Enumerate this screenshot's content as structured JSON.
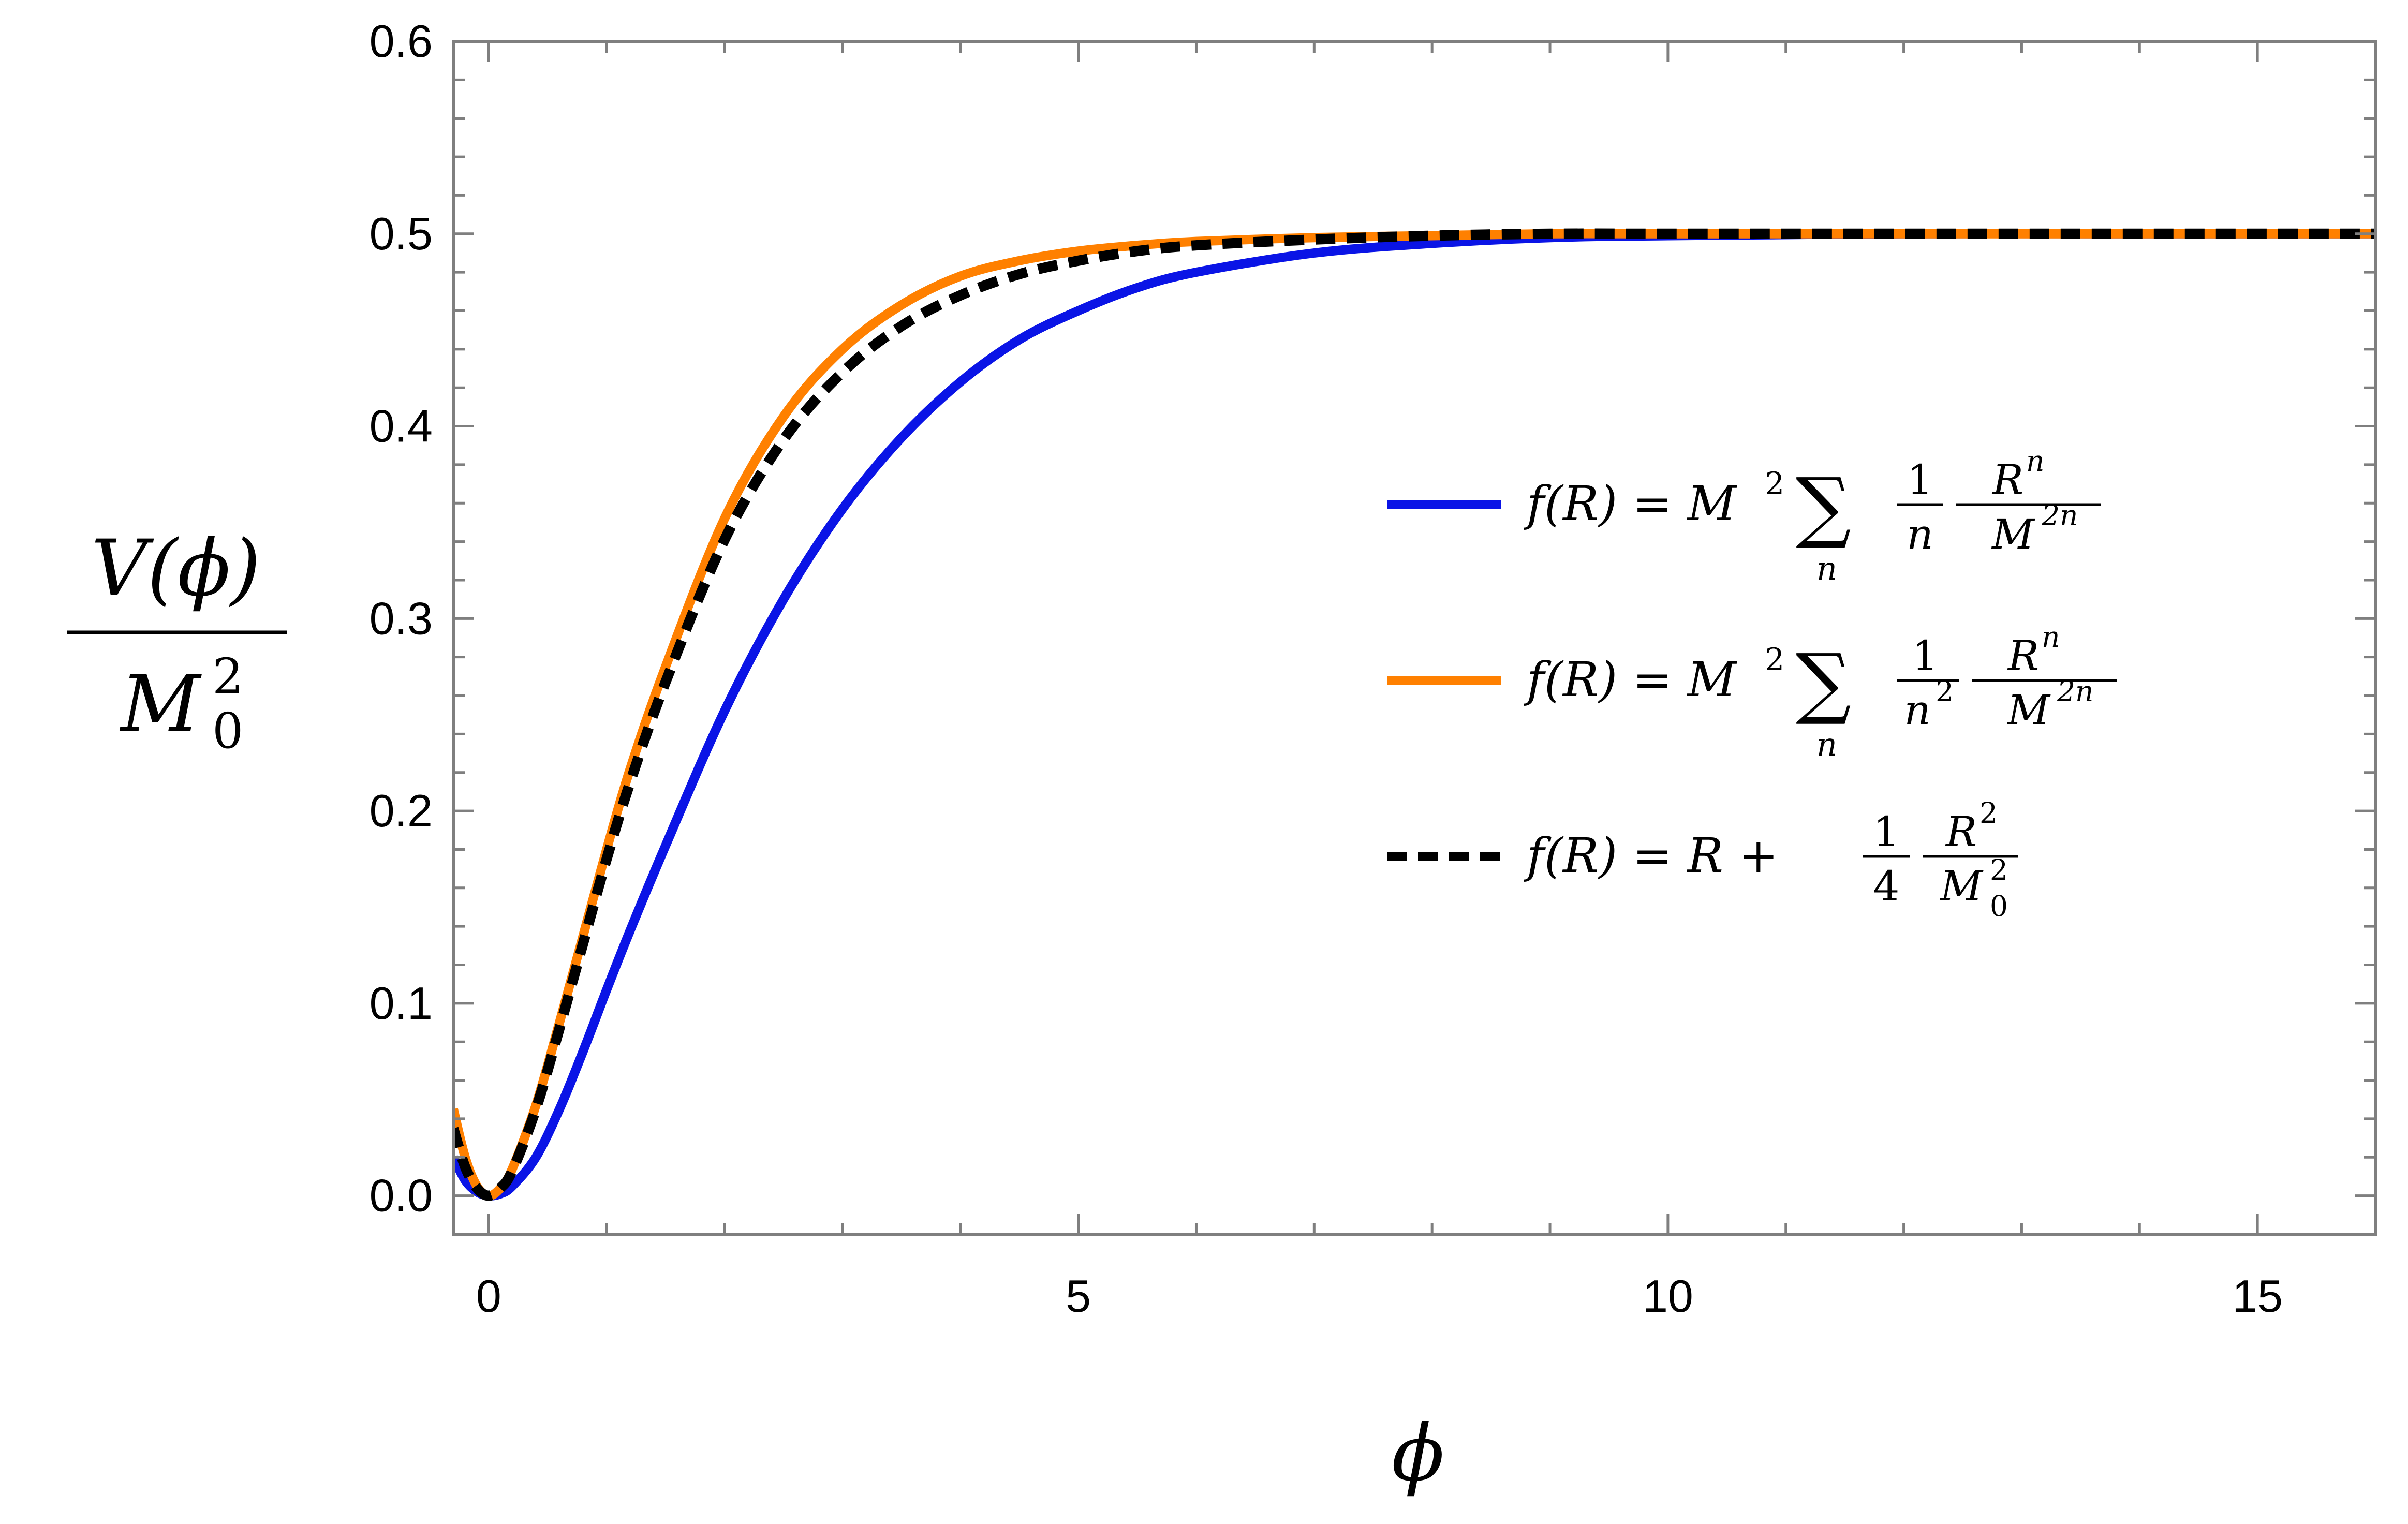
{
  "chart_data": {
    "type": "line",
    "title": "",
    "xlabel": "ϕ",
    "ylabel": {
      "numerator": "V(ϕ)",
      "denominator_base": "M",
      "denominator_sub": "0",
      "denominator_sup": "2"
    },
    "xlim": [
      -0.3,
      16
    ],
    "ylim": [
      -0.02,
      0.6
    ],
    "xticks": [
      0,
      5,
      10,
      15
    ],
    "xtick_labels": [
      "0",
      "5",
      "10",
      "15"
    ],
    "yticks": [
      0.0,
      0.1,
      0.2,
      0.3,
      0.4,
      0.5,
      0.6
    ],
    "ytick_labels": [
      "0.0",
      "0.1",
      "0.2",
      "0.3",
      "0.4",
      "0.5",
      "0.6"
    ],
    "grid": false,
    "legend_position": "center-right",
    "colors": {
      "frame": "#7f7f7f",
      "blue": "#0a14e6",
      "orange": "#ff8000",
      "black": "#000000"
    },
    "series": [
      {
        "legend": {
          "lhs": "f(R) = M",
          "lhs_sup": "2",
          "sum_sub": "n",
          "coef_num": "1",
          "coef_den": "n",
          "coef_den_sup": "",
          "frac_num": "R",
          "frac_num_sup": "n",
          "frac_den": "M",
          "frac_den_sup": "2n"
        },
        "style": "solid",
        "color": "#0a14e6",
        "x": [
          -0.3,
          -0.2,
          -0.1,
          0,
          0.1,
          0.2,
          0.4,
          0.6,
          0.8,
          1.0,
          1.2,
          1.5,
          2.0,
          2.5,
          3.0,
          3.5,
          4.0,
          4.5,
          5.0,
          5.5,
          6.0,
          7.0,
          8.0,
          9.0,
          10.0,
          12.0,
          14.0,
          16.0
        ],
        "y": [
          0.02,
          0.008,
          0.002,
          0.0,
          0.001,
          0.005,
          0.02,
          0.045,
          0.075,
          0.107,
          0.138,
          0.182,
          0.252,
          0.31,
          0.357,
          0.394,
          0.423,
          0.445,
          0.46,
          0.472,
          0.48,
          0.49,
          0.495,
          0.498,
          0.499,
          0.5,
          0.5,
          0.5
        ]
      },
      {
        "legend": {
          "lhs": "f(R) = M",
          "lhs_sup": "2",
          "sum_sub": "n",
          "coef_num": "1",
          "coef_den": "n",
          "coef_den_sup": "2",
          "frac_num": "R",
          "frac_num_sup": "n",
          "frac_den": "M",
          "frac_den_sup": "2n"
        },
        "style": "solid",
        "color": "#ff8000",
        "x": [
          -0.3,
          -0.2,
          -0.1,
          0,
          0.1,
          0.2,
          0.4,
          0.6,
          0.8,
          1.0,
          1.2,
          1.5,
          2.0,
          2.5,
          3.0,
          3.5,
          4.0,
          4.5,
          5.0,
          5.5,
          6.0,
          7.0,
          8.0,
          9.0,
          10.0,
          12.0,
          14.0,
          16.0
        ],
        "y": [
          0.045,
          0.02,
          0.005,
          0.0,
          0.004,
          0.014,
          0.047,
          0.09,
          0.135,
          0.18,
          0.222,
          0.275,
          0.352,
          0.405,
          0.44,
          0.463,
          0.478,
          0.486,
          0.491,
          0.494,
          0.496,
          0.498,
          0.499,
          0.5,
          0.5,
          0.5,
          0.5,
          0.5
        ]
      },
      {
        "legend": {
          "lhs": "f(R) = R + ",
          "coef_num": "1",
          "coef_den": "4",
          "frac_num": "R",
          "frac_num_sup": "2",
          "frac_den": "M",
          "frac_den_sub": "0",
          "frac_den_sup": "2"
        },
        "style": "dashed",
        "color": "#000000",
        "x": [
          -0.3,
          -0.2,
          -0.1,
          0,
          0.1,
          0.2,
          0.4,
          0.6,
          0.8,
          1.0,
          1.2,
          1.5,
          2.0,
          2.5,
          3.0,
          3.5,
          4.0,
          4.5,
          5.0,
          5.5,
          6.0,
          7.0,
          8.0,
          9.0,
          10.0,
          12.0,
          14.0,
          16.0
        ],
        "y": [
          0.035,
          0.015,
          0.004,
          0.0,
          0.004,
          0.013,
          0.045,
          0.087,
          0.131,
          0.175,
          0.215,
          0.267,
          0.341,
          0.393,
          0.428,
          0.452,
          0.468,
          0.479,
          0.486,
          0.491,
          0.494,
          0.497,
          0.499,
          0.5,
          0.5,
          0.5,
          0.5,
          0.5
        ]
      }
    ]
  }
}
